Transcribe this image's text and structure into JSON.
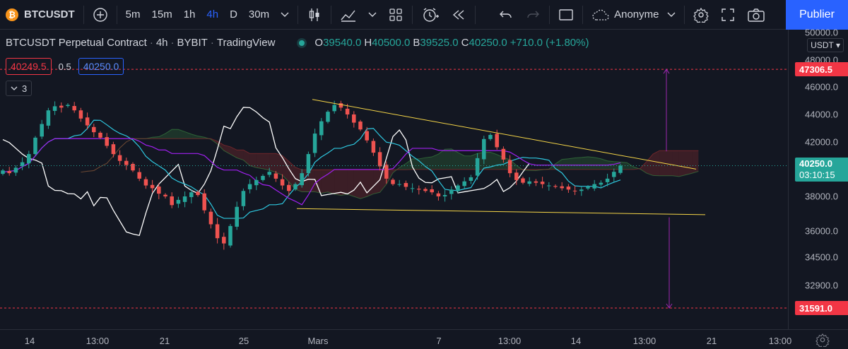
{
  "toolbar": {
    "symbol": "BTCUSDT",
    "symbol_icon": "bitcoin-icon",
    "add_symbol_icon": "plus-circle-icon",
    "intervals": [
      "5m",
      "15m",
      "1h",
      "4h",
      "D",
      "30m"
    ],
    "active_interval": "4h",
    "indicators_icon": "candles-icon",
    "chart_type_icon": "area-chart-icon",
    "templates_icon": "grid-icon",
    "alert_icon": "alarm-clock-icon",
    "replay_icon": "rewind-icon",
    "undo_icon": "undo-icon",
    "redo_icon": "redo-icon",
    "layout_icon": "square-icon",
    "layout_name": "Anonyme",
    "cloud_icon": "cloud-icon",
    "settings_icon": "gear-icon",
    "fullscreen_icon": "fullscreen-icon",
    "screenshot_icon": "camera-icon",
    "publish_label": "Publier"
  },
  "legend": {
    "title": "BTCUSDT Perpetual Contract",
    "interval": "4h",
    "exchange": "BYBIT",
    "source": "TradingView",
    "open_key": "O",
    "open": "39540.0",
    "high_key": "H",
    "high": "40500.0",
    "low_key": "B",
    "low": "39525.0",
    "close_key": "C",
    "close": "40250.0",
    "change": "+710.0 (+1.80%)",
    "sell_price": "40249.5",
    "spread": "0.5",
    "buy_price": "40250.0",
    "indicators_count": "3",
    "indicators_chevron": "chevron-down-icon"
  },
  "price_scale": {
    "currency": "USDT",
    "ticks": [
      "50000.0",
      "48000.0",
      "46000.0",
      "44000.0",
      "42000.0",
      "38000.0",
      "36000.0",
      "34500.0",
      "32900.0"
    ],
    "tick_values": [
      50000,
      48000,
      46000,
      44000,
      42000,
      38000,
      36000,
      34500,
      32900
    ],
    "upper_target_label": "47306.5",
    "upper_target": 47306.5,
    "last_price_label": "40250.0",
    "last_price": 40250,
    "countdown": "03:10:15",
    "lower_target_label": "31591.0",
    "lower_target": 31591
  },
  "time_scale": {
    "ticks": [
      "14",
      "13:00",
      "21",
      "25",
      "Mars",
      "7",
      "13:00",
      "14",
      "13:00",
      "21",
      "13:00"
    ],
    "settings_icon": "gear-icon"
  },
  "colors": {
    "background": "#131722",
    "up": "#26a69a",
    "down": "#ef5350",
    "trendline": "#f5d547",
    "lagging_span": "#ffffff",
    "conversion_line": "#2ec8e0",
    "base_line": "#a020f0",
    "target_line": "#f23645",
    "measure": "#9c27b0",
    "accent": "#2962ff"
  },
  "chart_data": {
    "type": "candlestick",
    "symbol": "BTCUSDT",
    "interval": "4h",
    "ylim": [
      30900,
      50200
    ],
    "indicators": [
      "ichimoku-cloud",
      "triangle-trendlines",
      "price-range-measure"
    ],
    "upper_trendline": {
      "from": 45100,
      "to": 40000
    },
    "lower_trendline": {
      "from": 37300,
      "to": 36950
    },
    "measure_up": {
      "from": 41300,
      "to": 47306.5
    },
    "measure_down": {
      "from": 36800,
      "to": 31591
    },
    "close_series": [
      39900,
      39700,
      40100,
      40500,
      41100,
      42300,
      43300,
      44300,
      44600,
      44500,
      44700,
      44300,
      43700,
      43200,
      42700,
      42300,
      41700,
      41100,
      40600,
      40300,
      39900,
      39300,
      38800,
      38600,
      38200,
      38000,
      37500,
      37800,
      38000,
      38300,
      38100,
      37200,
      36400,
      35600,
      35300,
      36300,
      37400,
      38400,
      38900,
      39200,
      39500,
      39800,
      39300,
      38800,
      38400,
      38900,
      39700,
      41100,
      42600,
      43500,
      44200,
      44700,
      44500,
      44000,
      43400,
      42900,
      42100,
      41200,
      40200,
      39300,
      38900,
      38900,
      38700,
      38600,
      38500,
      38400,
      38300,
      38000,
      38100,
      38500,
      38800,
      39100,
      39400,
      40800,
      42200,
      42500,
      41600,
      40700,
      39700,
      39200,
      39000,
      39100,
      39000,
      38900,
      38800,
      38700,
      38600,
      38500,
      38400,
      38500,
      38700,
      38900,
      39000,
      39300,
      39800,
      40250
    ]
  }
}
